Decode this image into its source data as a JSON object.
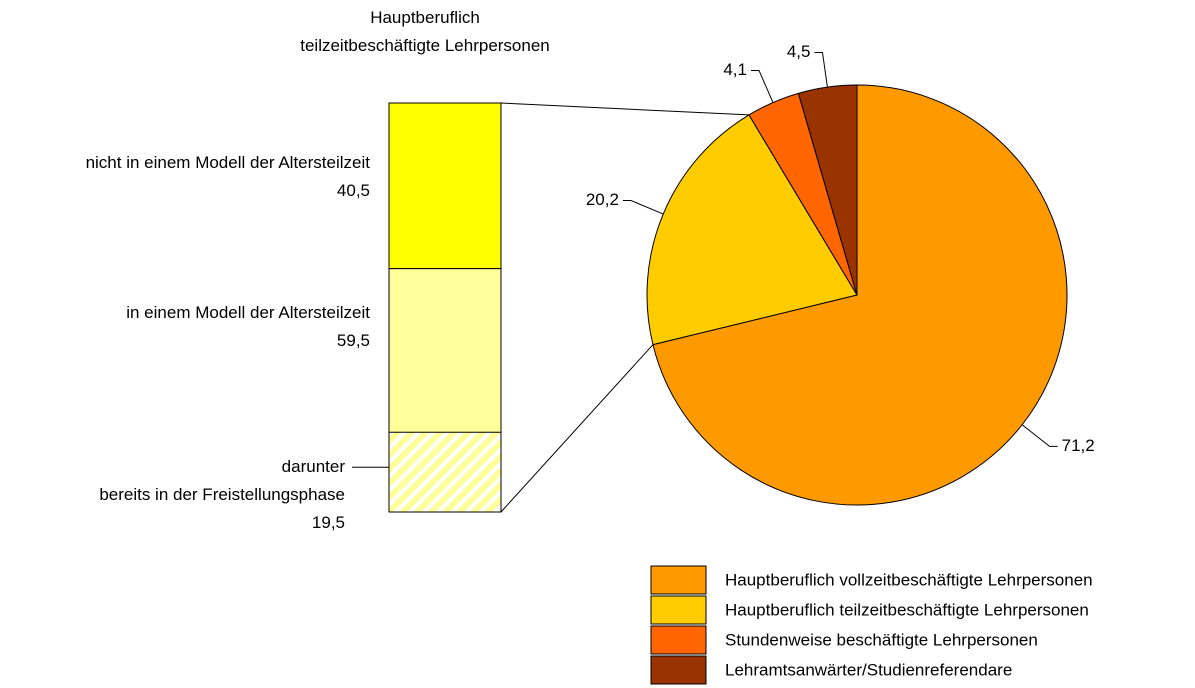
{
  "chart_data": [
    {
      "type": "pie",
      "categories": [
        "Hauptberuflich vollzeitbeschäftigte Lehrpersonen",
        "Hauptberuflich teilzeitbeschäftigte Lehrpersonen",
        "Stundenweise beschäftigte Lehrpersonen",
        "Lehramtsanwärter/Studienreferendare"
      ],
      "values": [
        71.2,
        20.2,
        4.1,
        4.5
      ],
      "value_labels": [
        "71,2",
        "20,2",
        "4,1",
        "4,5"
      ],
      "colors": [
        "#ff9900",
        "#ffcc00",
        "#ff6600",
        "#993300"
      ]
    },
    {
      "type": "bar",
      "title": "Hauptberuflich teilzeitbeschäftigte Lehrpersonen",
      "categories": [
        "nicht in einem Modell der Altersteilzeit",
        "in einem Modell der Altersteilzeit",
        "darunter\nbereits in der Freistellungsphase"
      ],
      "values": [
        40.5,
        59.5,
        19.5
      ],
      "value_labels": [
        "40,5",
        "59,5",
        "19,5"
      ],
      "colors": [
        "#ffff00",
        "#ffff99",
        "#ffff99"
      ]
    }
  ]
}
